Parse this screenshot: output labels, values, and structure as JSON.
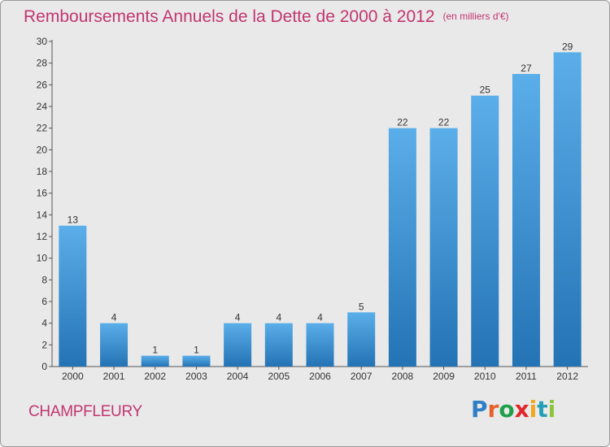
{
  "title": "Remboursements Annuels de la Dette de 2000 à 2012",
  "subtitle": "(en milliers d'€)",
  "commune": "CHAMPFLEURY",
  "logo": {
    "letters": [
      "P",
      "r",
      "o",
      "x",
      "i",
      "t",
      "i"
    ],
    "colors": [
      "#2f7fc7",
      "#e5632b",
      "#1f9f4a",
      "#e2262d",
      "#f0a81c",
      "#23a0b6",
      "#8cc43f"
    ]
  },
  "colors": {
    "bar_top": "#5aaee9",
    "bar_bottom": "#2473b5",
    "text": "#c2356f"
  },
  "chart_data": {
    "type": "bar",
    "categories": [
      "2000",
      "2001",
      "2002",
      "2003",
      "2004",
      "2005",
      "2006",
      "2007",
      "2008",
      "2009",
      "2010",
      "2011",
      "2012"
    ],
    "values": [
      13,
      4,
      1,
      1,
      4,
      4,
      4,
      5,
      22,
      22,
      25,
      27,
      29
    ],
    "ylim": [
      0,
      30
    ],
    "yticks": [
      0,
      2,
      4,
      6,
      8,
      10,
      12,
      14,
      16,
      18,
      20,
      22,
      24,
      26,
      28,
      30
    ],
    "grid": false,
    "data_labels": true
  }
}
